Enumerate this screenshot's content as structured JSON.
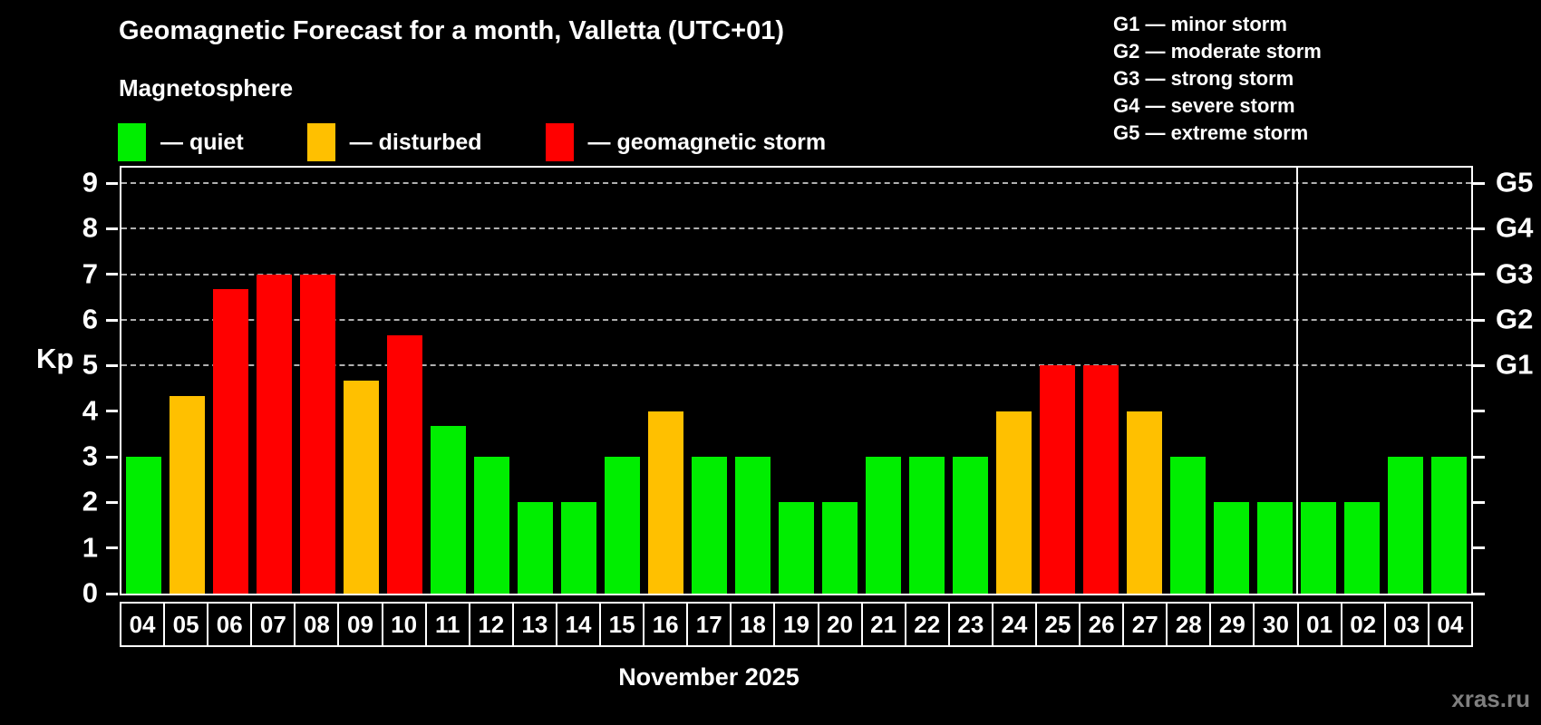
{
  "header": {
    "title": "Geomagnetic Forecast for a month, Valletta (UTC+01)",
    "subtitle": "Magnetosphere",
    "legend": [
      {
        "key": "quiet",
        "label": "— quiet",
        "color": "#00ee00"
      },
      {
        "key": "disturbed",
        "label": "— disturbed",
        "color": "#ffc000"
      },
      {
        "key": "storm",
        "label": "— geomagnetic storm",
        "color": "#ff0000"
      }
    ]
  },
  "storm_legend": [
    "G1 — minor storm",
    "G2 — moderate storm",
    "G3 — strong storm",
    "G4 — severe storm",
    "G5 — extreme storm"
  ],
  "chart_data": {
    "type": "bar",
    "title": "Geomagnetic Forecast for a month, Valletta (UTC+01)",
    "ylabel": "Kp",
    "xlabel": "November 2025",
    "ylim": [
      0,
      9.35
    ],
    "yticks": [
      0,
      1,
      2,
      3,
      4,
      5,
      6,
      7,
      8,
      9
    ],
    "gridline_values": [
      5,
      6,
      7,
      8,
      9
    ],
    "grid": "horizontal dashed at storm levels only",
    "legend_position": "top",
    "right_axis": [
      {
        "value": 5,
        "label": "G1"
      },
      {
        "value": 6,
        "label": "G2"
      },
      {
        "value": 7,
        "label": "G3"
      },
      {
        "value": 8,
        "label": "G4"
      },
      {
        "value": 9,
        "label": "G5"
      }
    ],
    "categories": [
      "04",
      "05",
      "06",
      "07",
      "08",
      "09",
      "10",
      "11",
      "12",
      "13",
      "14",
      "15",
      "16",
      "17",
      "18",
      "19",
      "20",
      "21",
      "22",
      "23",
      "24",
      "25",
      "26",
      "27",
      "28",
      "29",
      "30",
      "01",
      "02",
      "03",
      "04"
    ],
    "series": [
      {
        "name": "Kp forecast",
        "values": [
          3,
          4.33,
          6.67,
          7,
          7,
          4.67,
          5.67,
          3.67,
          3,
          2,
          2,
          3,
          4,
          3,
          3,
          2,
          2,
          3,
          3,
          3,
          4,
          5,
          5,
          4,
          3,
          2,
          2,
          2,
          2,
          3,
          3
        ]
      }
    ],
    "statuses": [
      "quiet",
      "disturbed",
      "storm",
      "storm",
      "storm",
      "disturbed",
      "storm",
      "quiet",
      "quiet",
      "quiet",
      "quiet",
      "quiet",
      "disturbed",
      "quiet",
      "quiet",
      "quiet",
      "quiet",
      "quiet",
      "quiet",
      "quiet",
      "disturbed",
      "storm",
      "storm",
      "disturbed",
      "quiet",
      "quiet",
      "quiet",
      "quiet",
      "quiet",
      "quiet",
      "quiet"
    ],
    "status_colors": {
      "quiet": "#00ee00",
      "disturbed": "#ffc000",
      "storm": "#ff0000"
    },
    "month_separator_after_index": 26,
    "colors": {
      "background": "#000000",
      "axis": "#ffffff",
      "gridline": "#b0b0b0",
      "watermark_text": "#7f7f7f"
    }
  },
  "footer": {
    "watermark": "xras.ru"
  }
}
